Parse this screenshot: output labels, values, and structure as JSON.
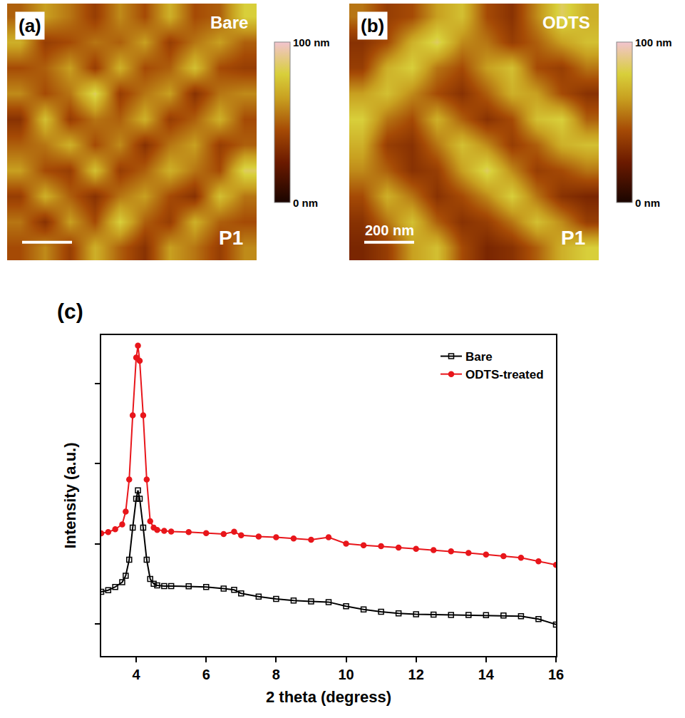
{
  "chart_data": [
    {
      "type": "heatmap",
      "panel": "(a)",
      "label": "Bare",
      "sample": "P1",
      "x": [
        50,
        150,
        250,
        350,
        450,
        550,
        650,
        750,
        850,
        950
      ],
      "y": [
        50,
        150,
        250,
        350,
        450,
        550,
        650,
        750,
        850,
        950
      ],
      "xlim": [
        0,
        1000
      ],
      "ylim": [
        0,
        1000
      ],
      "tick_labels": false,
      "scale_bar": {
        "length": 200
      },
      "colorbar": {
        "range": [
          0,
          100
        ],
        "ticks": [
          {
            "value": 0,
            "label": "0 nm"
          },
          {
            "value": 100,
            "label": "100 nm"
          }
        ]
      },
      "z": [
        [
          45,
          60,
          40,
          70,
          50,
          35,
          65,
          55,
          40,
          60
        ],
        [
          55,
          35,
          65,
          45,
          80,
          50,
          40,
          70,
          50,
          45
        ],
        [
          40,
          70,
          50,
          35,
          55,
          65,
          45,
          35,
          75,
          55
        ],
        [
          65,
          45,
          40,
          75,
          40,
          50,
          70,
          55,
          45,
          85
        ],
        [
          50,
          55,
          70,
          45,
          60,
          35,
          55,
          65,
          40,
          50
        ],
        [
          35,
          75,
          40,
          55,
          50,
          70,
          40,
          50,
          70,
          45
        ],
        [
          60,
          45,
          55,
          85,
          40,
          55,
          65,
          35,
          55,
          60
        ],
        [
          45,
          50,
          65,
          40,
          70,
          45,
          50,
          75,
          45,
          40
        ],
        [
          70,
          40,
          45,
          55,
          50,
          65,
          40,
          55,
          65,
          50
        ],
        [
          50,
          65,
          55,
          40,
          60,
          45,
          70,
          45,
          50,
          80
        ]
      ]
    },
    {
      "type": "heatmap",
      "panel": "(b)",
      "label": "ODTS",
      "sample": "P1",
      "x": [
        50,
        150,
        250,
        350,
        450,
        550,
        650,
        750,
        850,
        950
      ],
      "y": [
        50,
        150,
        250,
        350,
        450,
        550,
        650,
        750,
        850,
        950
      ],
      "xlim": [
        0,
        1000
      ],
      "ylim": [
        0,
        1000
      ],
      "tick_labels": false,
      "scale_bar": {
        "length": 200,
        "label": "200 nm"
      },
      "colorbar": {
        "range": [
          0,
          100
        ],
        "ticks": [
          {
            "value": 0,
            "label": "0 nm"
          },
          {
            "value": 100,
            "label": "100 nm"
          }
        ]
      },
      "z": [
        [
          30,
          40,
          65,
          75,
          45,
          30,
          35,
          50,
          70,
          80
        ],
        [
          35,
          55,
          75,
          50,
          35,
          40,
          55,
          75,
          60,
          40
        ],
        [
          45,
          70,
          55,
          35,
          45,
          60,
          80,
          55,
          35,
          30
        ],
        [
          60,
          50,
          35,
          40,
          65,
          85,
          60,
          40,
          45,
          55
        ],
        [
          70,
          40,
          35,
          55,
          75,
          60,
          40,
          50,
          70,
          75
        ],
        [
          80,
          55,
          45,
          70,
          50,
          35,
          45,
          75,
          80,
          50
        ],
        [
          65,
          75,
          60,
          45,
          35,
          50,
          70,
          65,
          45,
          35
        ],
        [
          40,
          70,
          80,
          55,
          45,
          65,
          75,
          45,
          40,
          55
        ],
        [
          35,
          45,
          70,
          85,
          60,
          55,
          40,
          50,
          65,
          75
        ],
        [
          55,
          40,
          45,
          65,
          75,
          45,
          35,
          60,
          85,
          70
        ]
      ]
    },
    {
      "type": "line",
      "panel": "(c)",
      "x_label": "2 theta (degress)",
      "y_label": "Intensity (a.u.)",
      "xlim": [
        3,
        16
      ],
      "xticks": [
        4,
        6,
        8,
        10,
        12,
        14,
        16
      ],
      "ylim": [
        0,
        100
      ],
      "yticks": [
        10,
        35,
        60,
        85
      ],
      "tick_labels": "x",
      "legend": "upper right",
      "x": [
        3,
        3.2,
        3.4,
        3.6,
        3.7,
        3.8,
        3.9,
        4.0,
        4.05,
        4.1,
        4.2,
        4.3,
        4.4,
        4.5,
        4.6,
        4.8,
        5,
        5.5,
        6,
        6.5,
        6.8,
        7,
        7.5,
        8,
        8.5,
        9,
        9.5,
        10,
        10.5,
        11,
        11.5,
        12,
        12.5,
        13,
        13.5,
        14,
        14.5,
        15,
        15.5,
        16
      ],
      "series": [
        {
          "name": "Bare",
          "color": "#000000",
          "marker": "square-open",
          "values": [
            20,
            20.5,
            21.5,
            23,
            25,
            30,
            40,
            49,
            51.6,
            49,
            40,
            30,
            24,
            22.5,
            22,
            21.8,
            21.8,
            21.7,
            21.5,
            21,
            20.6,
            19.5,
            18.5,
            17.8,
            17.3,
            17,
            16.8,
            15.5,
            14.5,
            13.8,
            13.3,
            13,
            12.9,
            12.8,
            12.8,
            12.7,
            12.6,
            12.4,
            11.5,
            9.8
          ]
        },
        {
          "name": "ODTS-treated",
          "color": "#e8161b",
          "marker": "circle",
          "values": [
            38.2,
            38.6,
            39.5,
            41,
            45,
            55,
            75,
            93,
            96.7,
            92,
            75,
            55,
            42,
            40,
            39.3,
            39,
            38.8,
            38.6,
            38.3,
            38,
            38.7,
            37.6,
            37.2,
            37,
            36.6,
            36.2,
            37,
            35,
            34.5,
            34.2,
            33.8,
            33.4,
            33,
            32.6,
            32.1,
            31.6,
            31.1,
            30.6,
            29.5,
            28.4
          ]
        }
      ]
    }
  ]
}
